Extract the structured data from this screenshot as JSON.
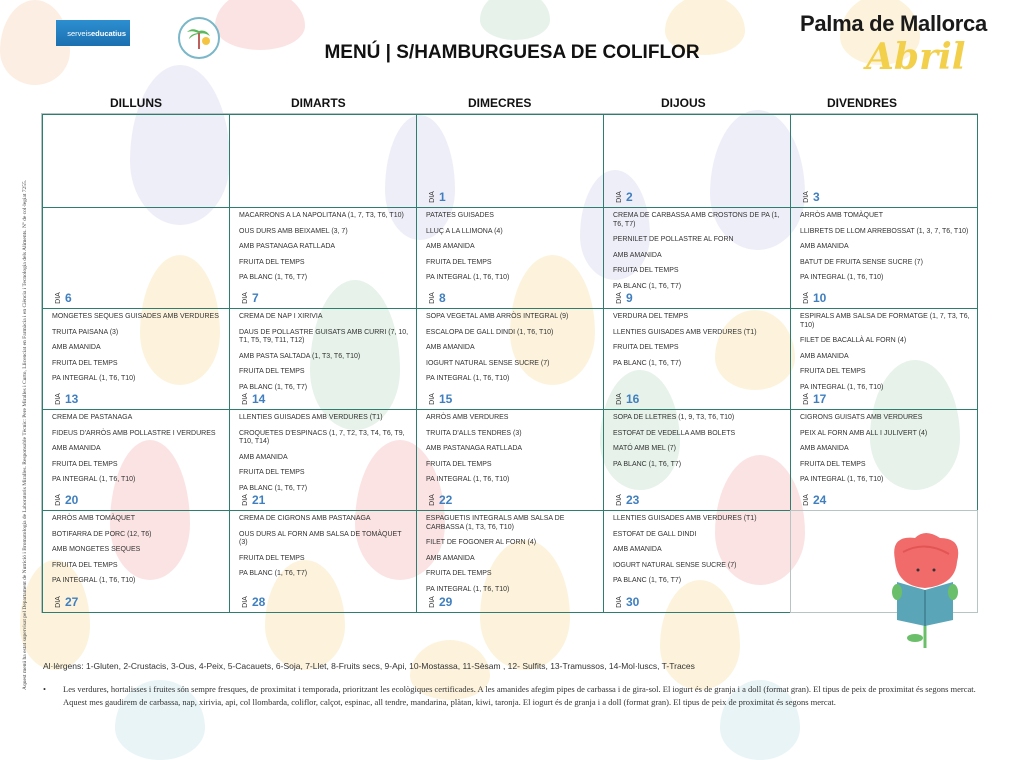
{
  "header": {
    "logo_left_text_light": "serveis",
    "logo_left_text_bold": "educatius",
    "title": "MENÚ | S/HAMBURGUESA DE COLIFLOR",
    "city": "Palma de Mallorca",
    "month": "Abril"
  },
  "days": [
    "DILLUNS",
    "DIMARTS",
    "DIMECRES",
    "DIJOUS",
    "DIVENDRES"
  ],
  "day_prefix": "DIA",
  "weeks": [
    [
      {
        "day": "",
        "items": []
      },
      {
        "day": "",
        "items": []
      },
      {
        "day": "1",
        "items": []
      },
      {
        "day": "2",
        "items": []
      },
      {
        "day": "3",
        "items": []
      }
    ],
    [
      {
        "day": "6",
        "items": []
      },
      {
        "day": "7",
        "items": [
          "MACARRONS A LA NAPOLITANA  (1, 7, T3, T6, T10)",
          "OUS DURS AMB BEIXAMEL  (3, 7)",
          "AMB PASTANAGA RATLLADA",
          "FRUITA DEL TEMPS",
          "PA BLANC  (1, T6, T7)"
        ]
      },
      {
        "day": "8",
        "items": [
          "PATATES GUISADES",
          "LLUÇ A LA LLIMONA  (4)",
          "AMB AMANIDA",
          "FRUITA DEL TEMPS",
          "PA INTEGRAL  (1, T6, T10)"
        ]
      },
      {
        "day": "9",
        "items": [
          "CREMA DE CARBASSA AMB CROSTONS DE PA  (1, T6, T7)",
          "PERNILET DE POLLASTRE AL FORN",
          "AMB AMANIDA",
          "FRUITA DEL TEMPS",
          "PA BLANC  (1, T6, T7)"
        ]
      },
      {
        "day": "10",
        "items": [
          "ARRÒS AMB TOMÀQUET",
          "LLIBRETS DE LLOM ARREBOSSAT  (1, 3, 7, T6, T10)",
          "AMB AMANIDA",
          "BATUT DE FRUITA SENSE SUCRE  (7)",
          "PA INTEGRAL  (1, T6, T10)"
        ]
      }
    ],
    [
      {
        "day": "13",
        "items": [
          "MONGETES SEQUES GUISADES AMB VERDURES",
          "TRUITA PAISANA  (3)",
          "AMB AMANIDA",
          "FRUITA DEL TEMPS",
          "PA INTEGRAL  (1, T6, T10)"
        ]
      },
      {
        "day": "14",
        "items": [
          "CREMA DE NAP I XIRIVIA",
          "DAUS DE POLLASTRE GUISATS AMB CURRI  (7, 10, T1, T5, T9, T11, T12)",
          "AMB PASTA SALTADA  (1, T3, T6, T10)",
          "FRUITA DEL TEMPS",
          "PA BLANC  (1, T6, T7)"
        ]
      },
      {
        "day": "15",
        "items": [
          "SOPA VEGETAL AMB ARRÒS INTEGRAL  (9)",
          "ESCALOPA DE GALL DINDI  (1, T6, T10)",
          "AMB AMANIDA",
          "IOGURT NATURAL SENSE SUCRE  (7)",
          "PA INTEGRAL  (1, T6, T10)"
        ]
      },
      {
        "day": "16",
        "items": [
          "VERDURA DEL TEMPS",
          "LLENTIES GUISADES AMB VERDURES  (T1)",
          "FRUITA DEL TEMPS",
          "PA BLANC  (1, T6, T7)"
        ]
      },
      {
        "day": "17",
        "items": [
          "ESPIRALS AMB SALSA DE FORMATGE  (1, 7, T3, T6, T10)",
          "FILET DE BACALLÀ AL FORN  (4)",
          "AMB AMANIDA",
          "FRUITA DEL TEMPS",
          "PA INTEGRAL  (1, T6, T10)"
        ]
      }
    ],
    [
      {
        "day": "20",
        "items": [
          "CREMA DE PASTANAGA",
          "FIDEUS D'ARRÒS AMB POLLASTRE I VERDURES",
          "AMB AMANIDA",
          "FRUITA DEL TEMPS",
          "PA INTEGRAL  (1, T6, T10)"
        ]
      },
      {
        "day": "21",
        "items": [
          "LLENTIES GUISADES AMB VERDURES  (T1)",
          "CROQUETES D'ESPINACS  (1, 7, T2, T3, T4, T6, T9, T10, T14)",
          "AMB AMANIDA",
          "FRUITA DEL TEMPS",
          "PA BLANC  (1, T6, T7)"
        ]
      },
      {
        "day": "22",
        "items": [
          "ARRÒS AMB VERDURES",
          "TRUITA D'ALLS TENDRES  (3)",
          "AMB PASTANAGA RATLLADA",
          "FRUITA DEL TEMPS",
          "PA INTEGRAL  (1, T6, T10)"
        ]
      },
      {
        "day": "23",
        "items": [
          "SOPA DE LLETRES  (1, 9, T3, T6, T10)",
          "ESTOFAT DE VEDELLA AMB BOLETS",
          "MATÓ AMB MEL  (7)",
          "PA BLANC  (1, T6, T7)"
        ]
      },
      {
        "day": "24",
        "items": [
          "CIGRONS GUISATS AMB VERDURES",
          "PEIX AL FORN AMB ALL I JULIVERT  (4)",
          "AMB AMANIDA",
          "FRUITA DEL TEMPS",
          "PA INTEGRAL  (1, T6, T10)"
        ]
      }
    ],
    [
      {
        "day": "27",
        "items": [
          "ARRÒS AMB TOMÀQUET",
          "BOTIFARRA DE PORC  (12, T6)",
          "AMB MONGETES SEQUES",
          "FRUITA DEL TEMPS",
          "PA INTEGRAL  (1, T6, T10)"
        ]
      },
      {
        "day": "28",
        "items": [
          "CREMA DE CIGRONS AMB PASTANAGA",
          "OUS DURS AL FORN AMB SALSA DE TOMÀQUET  (3)",
          "FRUITA DEL TEMPS",
          "PA BLANC  (1, T6, T7)"
        ]
      },
      {
        "day": "29",
        "items": [
          "ESPAGUETIS INTEGRALS AMB SALSA DE CARBASSA  (1, T3, T6, T10)",
          "FILET DE FOGONER AL FORN  (4)",
          "AMB AMANIDA",
          "FRUITA DEL TEMPS",
          "PA INTEGRAL  (1, T6, T10)"
        ]
      },
      {
        "day": "30",
        "items": [
          "LLENTIES GUISADES AMB VERDURES  (T1)",
          "ESTOFAT DE GALL DINDI",
          "AMB AMANIDA",
          "IOGURT NATURAL SENSE SUCRE  (7)",
          "PA BLANC  (1, T6, T7)"
        ]
      },
      {
        "day": "",
        "items": []
      }
    ]
  ],
  "footer": {
    "allergens": "Al·lèrgens: 1-Gluten, 2-Crustacis, 3-Ous, 4-Peix, 5-Cacauets, 6-Soja, 7-Llet, 8-Fruits secs, 9-Api, 10-Mostassa, 11-Sèsam , 12- Sulfits, 13-Tramussos, 14-Mol·luscs, T-Traces",
    "bullet": "•",
    "note": "Les verdures, hortalisses i fruites són sempre fresques, de proximitat i temporada, prioritzant les ecològiques certificades. A les amanides afegim pipes de carbassa i de gira-sol. El iogurt és de granja i a doll (format gran). El tipus de peix de proximitat és segons mercat. Aquest mes gaudirem de carbassa, nap, xirivia, api, col llombarda, coliflor, calçot, espinac, all tendre, mandarina, plàtan, kiwi, taronja. El iogurt és de granja i a doll (format gran). El tipus de peix de proximitat és segons mercat.",
    "supervision": "Aquest menú ha estat supervisat pel Departament de Nutrició i Bromatologia de Laboratoris Miralles. Responsable Tècnic: Pere Miralles i Curto, Llicenciat en Farmàcia i en Ciència i Tecnologia dels Aliments. Nº de col·legiat 7255."
  },
  "colors": {
    "grid_border": "#2e7d6e",
    "day_number": "#3f7fbf",
    "month": "#f2d04b",
    "egg_pink": "#fbe3e3",
    "egg_yellow": "#fdf3dc",
    "egg_green": "#e6f2ea",
    "egg_blue": "#e9f4f7",
    "egg_lilac": "#eeeef8"
  }
}
